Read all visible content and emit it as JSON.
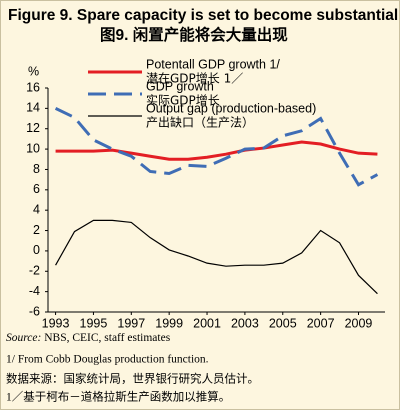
{
  "chart_data": {
    "type": "line",
    "title": "Figure 9. Spare capacity is set to become substantial",
    "subtitle": "图9.  闲置产能将会大量出现",
    "y_unit_label": "%",
    "x": [
      1993,
      1994,
      1995,
      1996,
      1997,
      1998,
      1999,
      2000,
      2001,
      2002,
      2003,
      2004,
      2005,
      2006,
      2007,
      2008,
      2009,
      2010
    ],
    "xlim": [
      1992.6,
      2010.4
    ],
    "xticks": [
      1993,
      1995,
      1997,
      1999,
      2001,
      2003,
      2005,
      2007,
      2009
    ],
    "ylim": [
      -6,
      16
    ],
    "yticks": [
      -6,
      -4,
      -2,
      0,
      2,
      4,
      6,
      8,
      10,
      12,
      14,
      16
    ],
    "series": [
      {
        "name": "Potentall GDP growth 1/",
        "name_cn": "潜在GDP增长 1／",
        "color": "#e31e24",
        "style": "solid",
        "width": 3,
        "values": [
          9.8,
          9.8,
          9.8,
          9.9,
          9.6,
          9.3,
          9.0,
          9.0,
          9.2,
          9.5,
          9.9,
          10.1,
          10.4,
          10.7,
          10.5,
          10.0,
          9.6,
          9.5
        ]
      },
      {
        "name": "GDP growth",
        "name_cn": "实际GDP增长",
        "color": "#3f6db5",
        "style": "dashed",
        "width": 3,
        "values": [
          14.0,
          13.1,
          10.9,
          10.0,
          9.3,
          7.8,
          7.6,
          8.4,
          8.3,
          9.1,
          10.0,
          10.1,
          11.3,
          11.8,
          13.0,
          9.6,
          6.5,
          7.5
        ]
      },
      {
        "name": "Output gap (production-based)",
        "name_cn": "产出缺口（生产法）",
        "color": "#000000",
        "style": "solid",
        "width": 1.2,
        "values": [
          -1.4,
          1.9,
          3.0,
          3.0,
          2.8,
          1.3,
          0.1,
          -0.5,
          -1.2,
          -1.5,
          -1.4,
          -1.4,
          -1.2,
          -0.2,
          2.0,
          0.8,
          -2.4,
          -4.2
        ]
      }
    ],
    "source_label": "Source:",
    "source_text": " NBS, CEIC, staff estimates",
    "footnote": "1/ From Cobb Douglas production function.",
    "source_cn": "数据来源：国家统计局，世界银行研究人员估计。",
    "footnote_cn": "1／基于柯布－道格拉斯生产函数加以推算。"
  }
}
